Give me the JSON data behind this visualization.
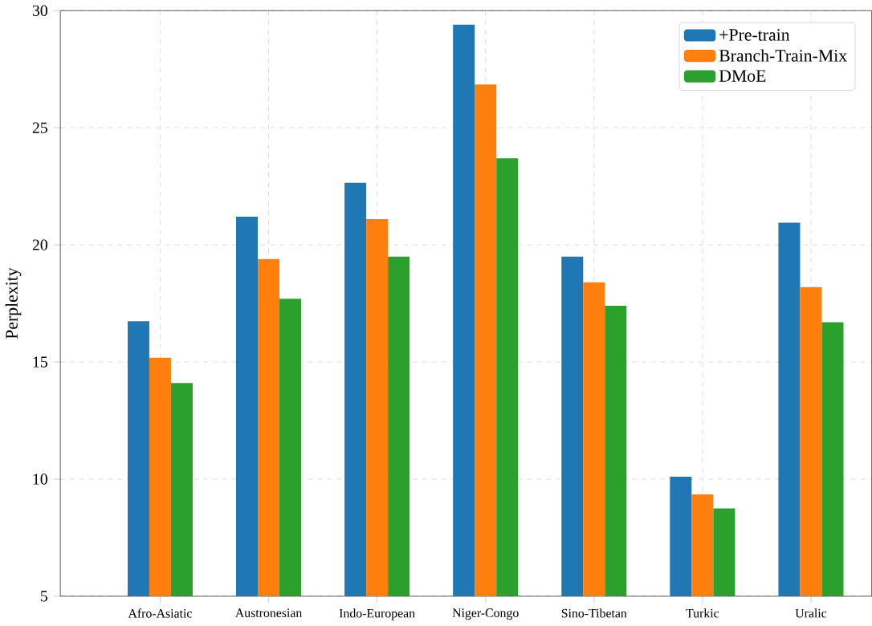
{
  "chart_data": {
    "type": "bar",
    "ylabel": "Perplexity",
    "categories": [
      "Afro-Asiatic",
      "Austronesian",
      "Indo-European",
      "Niger-Congo",
      "Sino-Tibetan",
      "Turkic",
      "Uralic"
    ],
    "series": [
      {
        "name": "+Pre-train",
        "color": "#1f77b4",
        "values": [
          16.74,
          21.2,
          22.65,
          29.4,
          19.5,
          10.1,
          20.95
        ]
      },
      {
        "name": "Branch-Train-Mix",
        "color": "#ff7f0e",
        "values": [
          15.18,
          19.4,
          21.1,
          26.85,
          18.4,
          9.35,
          18.2
        ]
      },
      {
        "name": "DMoE",
        "color": "#2ca02c",
        "values": [
          14.1,
          17.7,
          19.5,
          23.7,
          17.4,
          8.75,
          16.7
        ]
      }
    ],
    "ylim": [
      5,
      30
    ],
    "yticks": [
      5,
      10,
      15,
      20,
      25,
      30
    ],
    "grid": true,
    "legend": "top right"
  }
}
